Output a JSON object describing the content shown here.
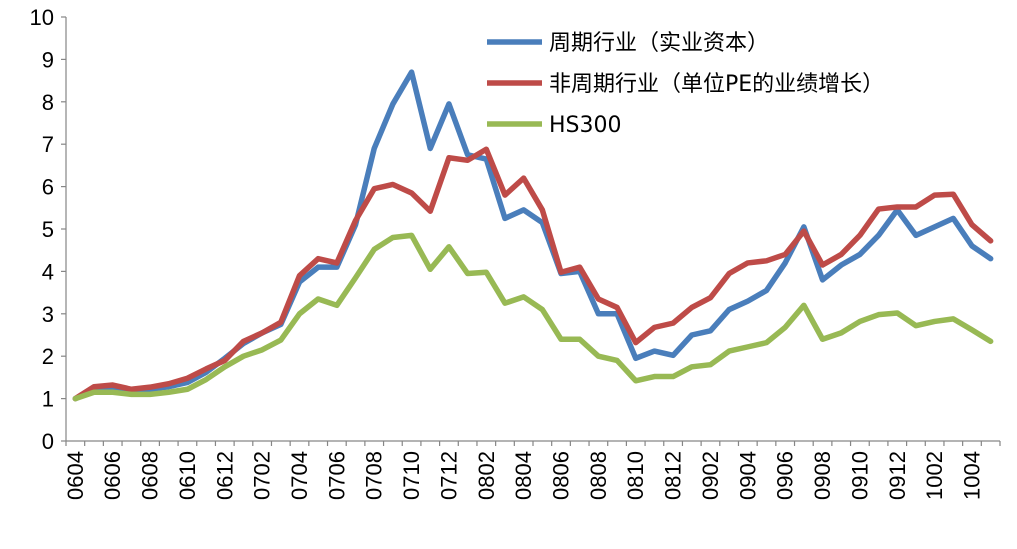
{
  "chart_data": {
    "type": "line",
    "title": "",
    "xlabel": "",
    "ylabel": "",
    "ylim": [
      0,
      10
    ],
    "yticks": [
      0,
      1,
      2,
      3,
      4,
      5,
      6,
      7,
      8,
      9,
      10
    ],
    "grid": false,
    "legend_position": "top-right",
    "categories": [
      "0604",
      "0605",
      "0606",
      "0607",
      "0608",
      "0609",
      "0610",
      "0611",
      "0612",
      "0701",
      "0702",
      "0703",
      "0704",
      "0705",
      "0706",
      "0707",
      "0708",
      "0709",
      "0710",
      "0711",
      "0712",
      "0801",
      "0802",
      "0803",
      "0804",
      "0805",
      "0806",
      "0807",
      "0808",
      "0809",
      "0810",
      "0811",
      "0812",
      "0901",
      "0902",
      "0903",
      "0904",
      "0905",
      "0906",
      "0907",
      "0908",
      "0909",
      "0910",
      "0911",
      "0912",
      "1001",
      "1002",
      "1003",
      "1004",
      "1005"
    ],
    "tick_labels": [
      "0604",
      "0606",
      "0608",
      "0610",
      "0612",
      "0702",
      "0704",
      "0706",
      "0708",
      "0710",
      "0712",
      "0802",
      "0804",
      "0806",
      "0808",
      "0810",
      "0812",
      "0902",
      "0904",
      "0906",
      "0908",
      "0910",
      "0912",
      "1002",
      "1004"
    ],
    "series": [
      {
        "name": "周期行业（实业资本）",
        "color": "#4a7ebb",
        "values": [
          1.0,
          1.2,
          1.25,
          1.2,
          1.22,
          1.28,
          1.38,
          1.62,
          1.95,
          2.3,
          2.55,
          2.75,
          3.75,
          4.1,
          4.1,
          5.1,
          6.9,
          7.95,
          8.7,
          6.9,
          7.95,
          6.75,
          6.65,
          5.25,
          5.45,
          5.15,
          3.95,
          4.0,
          3.0,
          3.0,
          1.95,
          2.12,
          2.02,
          2.5,
          2.6,
          3.1,
          3.3,
          3.55,
          4.2,
          5.05,
          3.8,
          4.15,
          4.4,
          4.85,
          5.45,
          4.85,
          5.05,
          5.25,
          4.6,
          4.3
        ]
      },
      {
        "name": "非周期行业（单位PE的业绩增长）",
        "color": "#be4b48",
        "values": [
          1.0,
          1.28,
          1.32,
          1.22,
          1.27,
          1.35,
          1.48,
          1.7,
          1.9,
          2.35,
          2.55,
          2.8,
          3.9,
          4.3,
          4.2,
          5.2,
          5.95,
          6.05,
          5.85,
          5.42,
          6.68,
          6.62,
          6.88,
          5.8,
          6.2,
          5.45,
          3.98,
          4.1,
          3.35,
          3.15,
          2.32,
          2.68,
          2.78,
          3.15,
          3.38,
          3.95,
          4.2,
          4.25,
          4.4,
          4.95,
          4.15,
          4.4,
          4.85,
          5.47,
          5.52,
          5.52,
          5.8,
          5.82,
          5.1,
          4.72
        ]
      },
      {
        "name": "HS300",
        "color": "#98b954",
        "values": [
          1.0,
          1.15,
          1.15,
          1.1,
          1.1,
          1.15,
          1.22,
          1.45,
          1.75,
          2.0,
          2.15,
          2.38,
          3.0,
          3.35,
          3.2,
          3.85,
          4.52,
          4.8,
          4.85,
          4.05,
          4.58,
          3.95,
          3.98,
          3.25,
          3.4,
          3.1,
          2.4,
          2.4,
          2.0,
          1.9,
          1.42,
          1.52,
          1.52,
          1.75,
          1.8,
          2.12,
          2.22,
          2.32,
          2.68,
          3.2,
          2.4,
          2.55,
          2.82,
          2.98,
          3.02,
          2.72,
          2.82,
          2.88,
          2.62,
          2.35
        ]
      }
    ]
  }
}
